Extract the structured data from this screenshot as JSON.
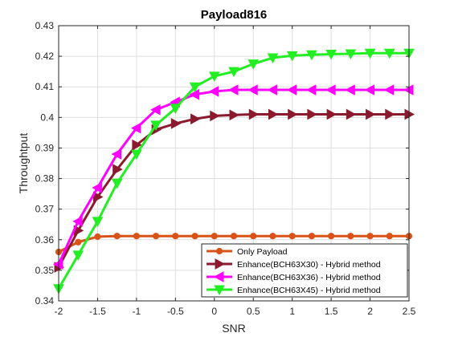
{
  "chart_data": {
    "type": "line",
    "title": "Payload816",
    "xlabel": "SNR",
    "ylabel": "Throughtput",
    "xlim": [
      -2,
      2.5
    ],
    "ylim": [
      0.34,
      0.43
    ],
    "grid": true,
    "legend_position": "bottom-right",
    "x_ticks": [
      -2,
      -1.5,
      -1,
      -0.5,
      0,
      0.5,
      1,
      1.5,
      2,
      2.5
    ],
    "x_tick_labels": [
      "-2",
      "-1.5",
      "-1",
      "-0.5",
      "0",
      "0.5",
      "1",
      "1.5",
      "2",
      "2.5"
    ],
    "y_ticks": [
      0.34,
      0.35,
      0.36,
      0.37,
      0.38,
      0.39,
      0.4,
      0.41,
      0.42,
      0.43
    ],
    "y_tick_labels": [
      "0.34",
      "0.35",
      "0.36",
      "0.37",
      "0.38",
      "0.39",
      "0.4",
      "0.41",
      "0.42",
      "0.43"
    ],
    "x": [
      -2,
      -1.75,
      -1.5,
      -1.25,
      -1,
      -0.75,
      -0.5,
      -0.25,
      0,
      0.25,
      0.5,
      0.75,
      1,
      1.25,
      1.5,
      1.75,
      2,
      2.25,
      2.5
    ],
    "series": [
      {
        "name": "Only Payload",
        "color": "#D95319",
        "marker": "circle",
        "values": [
          0.356,
          0.3592,
          0.361,
          0.3612,
          0.3612,
          0.3612,
          0.3612,
          0.3612,
          0.3612,
          0.3612,
          0.3612,
          0.3612,
          0.3612,
          0.3612,
          0.3612,
          0.3612,
          0.3612,
          0.3612,
          0.3612
        ]
      },
      {
        "name": "Enhance(BCH63X30) - Hybrid method",
        "color": "#8B1A2E",
        "marker": "triangle-right",
        "values": [
          0.351,
          0.363,
          0.374,
          0.383,
          0.391,
          0.396,
          0.398,
          0.3995,
          0.4005,
          0.4008,
          0.401,
          0.401,
          0.401,
          0.401,
          0.401,
          0.401,
          0.401,
          0.401,
          0.401
        ]
      },
      {
        "name": "Enhance(BCH63X36) - Hybrid method",
        "color": "#FF00FF",
        "marker": "triangle-left",
        "values": [
          0.352,
          0.366,
          0.377,
          0.388,
          0.3965,
          0.4025,
          0.405,
          0.4075,
          0.4085,
          0.409,
          0.409,
          0.409,
          0.409,
          0.409,
          0.409,
          0.409,
          0.409,
          0.409,
          0.409
        ]
      },
      {
        "name": "Enhance(BCH63X45) - Hybrid method",
        "color": "#22EE22",
        "marker": "triangle-down",
        "values": [
          0.344,
          0.355,
          0.366,
          0.3785,
          0.388,
          0.3975,
          0.403,
          0.41,
          0.4135,
          0.415,
          0.4175,
          0.4195,
          0.4202,
          0.4205,
          0.4207,
          0.4208,
          0.421,
          0.421,
          0.421
        ]
      }
    ]
  }
}
